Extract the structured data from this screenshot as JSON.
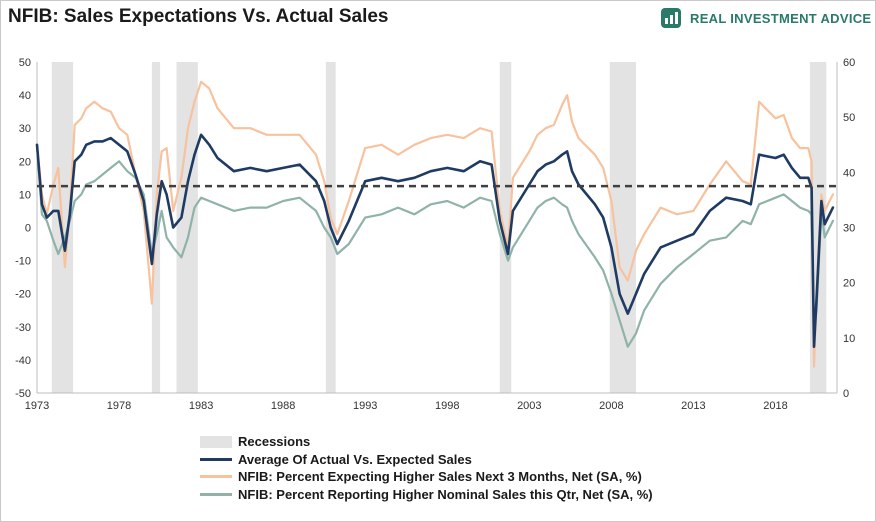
{
  "chart_data": {
    "type": "line",
    "title": "NFIB: Sales Expectations Vs. Actual Sales",
    "brand": "REAL INVESTMENT ADVICE",
    "x_tick_labels": [
      "1973",
      "1978",
      "1983",
      "1988",
      "1993",
      "1998",
      "2003",
      "2008",
      "2013",
      "2018"
    ],
    "xlim": [
      1973,
      2021.75
    ],
    "left_axis": {
      "ylim": [
        -50,
        50
      ],
      "ticks": [
        50,
        40,
        30,
        20,
        10,
        0,
        -10,
        -20,
        -30,
        -40,
        -50
      ]
    },
    "right_axis": {
      "ylim": [
        0,
        60
      ],
      "ticks": [
        60,
        50,
        40,
        30,
        20,
        10,
        0
      ]
    },
    "reference_line": {
      "value": 12.5,
      "axis": "left",
      "style": "dashed",
      "color": "#404040"
    },
    "recessions": [
      {
        "start": 1973.9,
        "end": 1975.2
      },
      {
        "start": 1980.0,
        "end": 1980.5
      },
      {
        "start": 1981.5,
        "end": 1982.8
      },
      {
        "start": 1990.6,
        "end": 1991.2
      },
      {
        "start": 2001.2,
        "end": 2001.9
      },
      {
        "start": 2007.9,
        "end": 2009.5
      },
      {
        "start": 2020.1,
        "end": 2021.1
      }
    ],
    "legend_placement": "bottom",
    "legend": [
      {
        "key": "recessions",
        "label": "Recessions",
        "color": "#e3e3e3",
        "kind": "box"
      },
      {
        "key": "avg",
        "label": "Average Of Actual Vs. Expected Sales",
        "color": "#1f3b63",
        "kind": "line"
      },
      {
        "key": "exp",
        "label": "NFIB: Percent Expecting Higher Sales Next 3 Months, Net (SA, %)",
        "color": "#f7c29d",
        "kind": "line"
      },
      {
        "key": "act",
        "label": "NFIB: Percent Reporting Higher Nominal Sales this Qtr, Net (SA, %)",
        "color": "#8fb3a8",
        "kind": "line"
      }
    ],
    "series": [
      {
        "key": "exp",
        "name": "NFIB: Percent Expecting Higher Sales Next 3 Months, Net (SA, %)",
        "axis": "left",
        "color": "#f7c29d",
        "x": [
          1973.0,
          1973.3,
          1973.6,
          1974.0,
          1974.3,
          1974.7,
          1975.0,
          1975.3,
          1975.7,
          1976.0,
          1976.5,
          1977.0,
          1977.5,
          1978.0,
          1978.5,
          1979.0,
          1979.5,
          1980.0,
          1980.3,
          1980.6,
          1980.9,
          1981.3,
          1981.8,
          1982.2,
          1982.6,
          1983.0,
          1983.5,
          1984.0,
          1985.0,
          1986.0,
          1987.0,
          1988.0,
          1989.0,
          1990.0,
          1990.5,
          1990.9,
          1991.3,
          1992.0,
          1993.0,
          1994.0,
          1995.0,
          1996.0,
          1997.0,
          1998.0,
          1999.0,
          2000.0,
          2000.7,
          2001.2,
          2001.7,
          2002.0,
          2003.0,
          2003.5,
          2004.0,
          2004.5,
          2005.0,
          2005.3,
          2005.6,
          2006.0,
          2007.0,
          2007.5,
          2008.0,
          2008.5,
          2009.0,
          2009.5,
          2010.0,
          2011.0,
          2012.0,
          2013.0,
          2014.0,
          2015.0,
          2016.0,
          2016.5,
          2017.0,
          2018.0,
          2018.5,
          2019.0,
          2019.5,
          2020.0,
          2020.2,
          2020.35,
          2020.5,
          2020.8,
          2021.0,
          2021.5
        ],
        "y": [
          25,
          10,
          4,
          13,
          18,
          -12,
          5,
          31,
          33,
          36,
          38,
          36,
          35,
          30,
          28,
          16,
          5,
          -23,
          10,
          23,
          24,
          5,
          15,
          30,
          38,
          44,
          42,
          36,
          30,
          30,
          28,
          28,
          28,
          22,
          14,
          3,
          -2,
          8,
          24,
          25,
          22,
          25,
          27,
          28,
          27,
          30,
          29,
          5,
          -6,
          15,
          23,
          28,
          30,
          31,
          37,
          40,
          32,
          27,
          22,
          18,
          8,
          -12,
          -16,
          -7,
          -2,
          6,
          4,
          5,
          13,
          20,
          14,
          13,
          38,
          33,
          34,
          27,
          24,
          24,
          20,
          -42,
          -20,
          10,
          5,
          10
        ]
      },
      {
        "key": "act",
        "name": "NFIB: Percent Reporting Higher Nominal Sales this Qtr, Net (SA, %)",
        "axis": "left",
        "color": "#8fb3a8",
        "x": [
          1973.0,
          1973.3,
          1973.6,
          1974.0,
          1974.3,
          1974.7,
          1975.0,
          1975.3,
          1975.7,
          1976.0,
          1976.5,
          1977.0,
          1977.5,
          1978.0,
          1978.5,
          1979.0,
          1979.5,
          1980.0,
          1980.3,
          1980.6,
          1980.9,
          1981.3,
          1981.8,
          1982.2,
          1982.6,
          1983.0,
          1983.5,
          1984.0,
          1985.0,
          1986.0,
          1987.0,
          1988.0,
          1989.0,
          1990.0,
          1990.5,
          1990.9,
          1991.3,
          1992.0,
          1993.0,
          1994.0,
          1995.0,
          1996.0,
          1997.0,
          1998.0,
          1999.0,
          2000.0,
          2000.7,
          2001.2,
          2001.7,
          2002.0,
          2003.0,
          2003.5,
          2004.0,
          2004.5,
          2005.0,
          2005.3,
          2005.6,
          2006.0,
          2007.0,
          2007.5,
          2008.0,
          2008.5,
          2009.0,
          2009.5,
          2010.0,
          2011.0,
          2012.0,
          2013.0,
          2014.0,
          2015.0,
          2016.0,
          2016.5,
          2017.0,
          2018.0,
          2018.5,
          2019.0,
          2019.5,
          2020.0,
          2020.2,
          2020.35,
          2020.5,
          2020.8,
          2021.0,
          2021.5
        ],
        "y": [
          25,
          4,
          2,
          -4,
          -8,
          -3,
          2,
          8,
          10,
          13,
          14,
          16,
          18,
          20,
          17,
          15,
          10,
          -8,
          -2,
          5,
          -3,
          -6,
          -9,
          -3,
          6,
          9,
          8,
          7,
          5,
          6,
          6,
          8,
          9,
          5,
          0,
          -3,
          -8,
          -5,
          3,
          4,
          6,
          4,
          7,
          8,
          6,
          9,
          8,
          -2,
          -10,
          -6,
          2,
          6,
          8,
          9,
          7,
          6,
          2,
          -2,
          -9,
          -13,
          -20,
          -28,
          -36,
          -32,
          -25,
          -17,
          -12,
          -8,
          -4,
          -3,
          2,
          1,
          7,
          9,
          10,
          8,
          6,
          5,
          4,
          -30,
          -25,
          5,
          -3,
          2
        ]
      },
      {
        "key": "avg",
        "name": "Average Of Actual Vs. Expected Sales",
        "axis": "left",
        "color": "#1f3b63",
        "x": [
          1973.0,
          1973.3,
          1973.6,
          1974.0,
          1974.3,
          1974.7,
          1975.0,
          1975.3,
          1975.7,
          1976.0,
          1976.5,
          1977.0,
          1977.5,
          1978.0,
          1978.5,
          1979.0,
          1979.5,
          1980.0,
          1980.3,
          1980.6,
          1980.9,
          1981.3,
          1981.8,
          1982.2,
          1982.6,
          1983.0,
          1983.5,
          1984.0,
          1985.0,
          1986.0,
          1987.0,
          1988.0,
          1989.0,
          1990.0,
          1990.5,
          1990.9,
          1991.3,
          1992.0,
          1993.0,
          1994.0,
          1995.0,
          1996.0,
          1997.0,
          1998.0,
          1999.0,
          2000.0,
          2000.7,
          2001.2,
          2001.7,
          2002.0,
          2003.0,
          2003.5,
          2004.0,
          2004.5,
          2005.0,
          2005.3,
          2005.6,
          2006.0,
          2007.0,
          2007.5,
          2008.0,
          2008.5,
          2009.0,
          2009.5,
          2010.0,
          2011.0,
          2012.0,
          2013.0,
          2014.0,
          2015.0,
          2016.0,
          2016.5,
          2017.0,
          2018.0,
          2018.5,
          2019.0,
          2019.5,
          2020.0,
          2020.2,
          2020.35,
          2020.5,
          2020.8,
          2021.0,
          2021.5
        ],
        "y": [
          25,
          7,
          3,
          5,
          5,
          -7,
          4,
          20,
          22,
          25,
          26,
          26,
          27,
          25,
          23,
          16,
          8,
          -11,
          4,
          14,
          10,
          0,
          3,
          14,
          22,
          28,
          25,
          21,
          17,
          18,
          17,
          18,
          19,
          14,
          8,
          0,
          -5,
          2,
          14,
          15,
          14,
          15,
          17,
          18,
          17,
          20,
          19,
          2,
          -8,
          5,
          13,
          17,
          19,
          20,
          22,
          23,
          17,
          13,
          7,
          3,
          -6,
          -20,
          -26,
          -20,
          -14,
          -6,
          -4,
          -2,
          5,
          9,
          8,
          7,
          22,
          21,
          22,
          18,
          15,
          15,
          12,
          -36,
          -22,
          8,
          1,
          6
        ]
      }
    ]
  }
}
